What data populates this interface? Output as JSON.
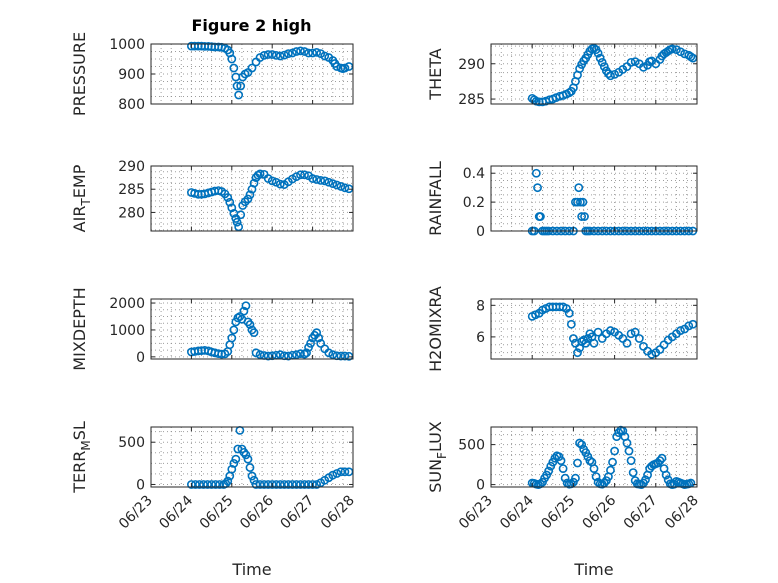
{
  "figure": {
    "title": "Figure 2 high",
    "marker_color": "#0072BD"
  },
  "chart_data": [
    {
      "id": "pressure",
      "type": "scatter",
      "title": "Figure 2 high",
      "ylabel": "PRESSURE",
      "ylabel_sub": "",
      "xlabel": "",
      "xlim": [
        0,
        5
      ],
      "ylim": [
        800,
        1000
      ],
      "yticks": [
        800,
        900,
        1000
      ],
      "ytick_labels": [
        "800",
        "900",
        "1000"
      ],
      "xticks": [
        0,
        1,
        2,
        3,
        4,
        5
      ],
      "xtick_labels": [],
      "grid": true,
      "minor_grid": true,
      "x": [
        1.0,
        1.08,
        1.17,
        1.25,
        1.33,
        1.42,
        1.5,
        1.58,
        1.67,
        1.75,
        1.83,
        1.9,
        1.95,
        2.0,
        2.05,
        2.1,
        2.13,
        2.17,
        2.22,
        2.27,
        2.33,
        2.4,
        2.5,
        2.6,
        2.7,
        2.8,
        2.9,
        3.0,
        3.1,
        3.2,
        3.3,
        3.4,
        3.5,
        3.6,
        3.7,
        3.8,
        3.9,
        4.0,
        4.1,
        4.2,
        4.3,
        4.4,
        4.5,
        4.55,
        4.6,
        4.7,
        4.75,
        4.8,
        4.9
      ],
      "y": [
        993,
        993,
        993,
        993,
        992,
        992,
        991,
        990,
        990,
        989,
        986,
        980,
        970,
        950,
        920,
        890,
        860,
        830,
        860,
        890,
        900,
        905,
        920,
        940,
        955,
        962,
        965,
        965,
        962,
        960,
        963,
        968,
        970,
        975,
        977,
        975,
        970,
        970,
        972,
        968,
        960,
        955,
        945,
        935,
        925,
        920,
        918,
        920,
        925
      ]
    },
    {
      "id": "theta",
      "type": "scatter",
      "title": "",
      "ylabel": "THETA",
      "ylabel_sub": "",
      "xlabel": "",
      "xlim": [
        0,
        5
      ],
      "ylim": [
        284.3,
        292.8
      ],
      "yticks": [
        285,
        290
      ],
      "ytick_labels": [
        "285",
        "290"
      ],
      "xticks": [
        0,
        1,
        2,
        3,
        4,
        5
      ],
      "xtick_labels": [],
      "grid": true,
      "minor_grid": true,
      "x": [
        1.0,
        1.05,
        1.1,
        1.17,
        1.25,
        1.33,
        1.42,
        1.5,
        1.58,
        1.67,
        1.75,
        1.83,
        1.9,
        1.95,
        2.0,
        2.05,
        2.1,
        2.15,
        2.2,
        2.25,
        2.3,
        2.35,
        2.4,
        2.45,
        2.5,
        2.55,
        2.6,
        2.65,
        2.7,
        2.75,
        2.8,
        2.85,
        2.9,
        3.0,
        3.1,
        3.2,
        3.3,
        3.4,
        3.5,
        3.6,
        3.7,
        3.8,
        3.85,
        3.9,
        4.0,
        4.1,
        4.15,
        4.2,
        4.25,
        4.3,
        4.35,
        4.4,
        4.5,
        4.6,
        4.7,
        4.8,
        4.85,
        4.9
      ],
      "y": [
        285.1,
        284.9,
        284.7,
        284.6,
        284.6,
        284.7,
        284.9,
        285.0,
        285.2,
        285.4,
        285.5,
        285.7,
        285.9,
        286.1,
        286.6,
        287.5,
        288.4,
        289.3,
        289.9,
        290.4,
        290.8,
        291.3,
        291.8,
        292.1,
        292.2,
        292.0,
        291.5,
        290.8,
        290.2,
        289.6,
        289.0,
        288.6,
        288.3,
        288.5,
        288.8,
        289.2,
        289.6,
        290.2,
        290.3,
        290.0,
        289.5,
        289.8,
        290.3,
        290.4,
        290.0,
        290.6,
        291.1,
        291.4,
        291.6,
        291.8,
        292.0,
        292.1,
        292.0,
        291.7,
        291.4,
        291.2,
        291.0,
        290.8
      ]
    },
    {
      "id": "air_temp",
      "type": "scatter",
      "title": "",
      "ylabel": "AIR",
      "ylabel_sub": "T",
      "ylabel_post": "EMP",
      "xlabel": "",
      "xlim": [
        0,
        5
      ],
      "ylim": [
        276,
        290
      ],
      "yticks": [
        280,
        285,
        290
      ],
      "ytick_labels": [
        "280",
        "285",
        "290"
      ],
      "xticks": [
        0,
        1,
        2,
        3,
        4,
        5
      ],
      "xtick_labels": [],
      "grid": true,
      "minor_grid": true,
      "x": [
        1.0,
        1.08,
        1.17,
        1.25,
        1.33,
        1.42,
        1.5,
        1.58,
        1.67,
        1.75,
        1.83,
        1.9,
        1.95,
        2.0,
        2.05,
        2.1,
        2.13,
        2.17,
        2.22,
        2.27,
        2.33,
        2.4,
        2.45,
        2.5,
        2.55,
        2.6,
        2.65,
        2.7,
        2.8,
        2.9,
        3.0,
        3.1,
        3.2,
        3.3,
        3.4,
        3.5,
        3.6,
        3.7,
        3.8,
        3.9,
        4.0,
        4.1,
        4.2,
        4.3,
        4.4,
        4.5,
        4.6,
        4.7,
        4.8,
        4.9
      ],
      "y": [
        284.3,
        284.1,
        283.9,
        283.9,
        284.0,
        284.2,
        284.4,
        284.6,
        284.7,
        284.5,
        284.0,
        283.2,
        282.2,
        281.0,
        279.8,
        278.7,
        277.9,
        276.9,
        279.5,
        281.5,
        282.3,
        282.9,
        283.8,
        285.0,
        286.3,
        287.5,
        288.0,
        288.3,
        288.2,
        287.3,
        286.8,
        286.5,
        286.1,
        286.0,
        286.6,
        287.2,
        287.7,
        288.1,
        288.1,
        287.9,
        287.3,
        287.1,
        286.9,
        286.8,
        286.5,
        286.2,
        285.9,
        285.6,
        285.3,
        285.1
      ]
    },
    {
      "id": "rainfall",
      "type": "scatter",
      "title": "",
      "ylabel": "RAINFALL",
      "ylabel_sub": "",
      "xlabel": "",
      "xlim": [
        0,
        5
      ],
      "ylim": [
        0,
        0.45
      ],
      "yticks": [
        0,
        0.2,
        0.4
      ],
      "ytick_labels": [
        "0",
        "0.2",
        "0.4"
      ],
      "xticks": [
        0,
        1,
        2,
        3,
        4,
        5
      ],
      "xtick_labels": [],
      "grid": true,
      "minor_grid": true,
      "x": [
        1.0,
        1.05,
        1.1,
        1.13,
        1.17,
        1.2,
        1.25,
        1.3,
        1.35,
        1.4,
        1.5,
        1.6,
        1.7,
        1.8,
        1.9,
        2.0,
        2.05,
        2.1,
        2.13,
        2.17,
        2.2,
        2.23,
        2.27,
        2.3,
        2.35,
        2.4,
        2.5,
        2.6,
        2.7,
        2.8,
        2.9,
        3.0,
        3.1,
        3.2,
        3.3,
        3.4,
        3.5,
        3.6,
        3.7,
        3.8,
        3.9,
        4.0,
        4.1,
        4.2,
        4.3,
        4.4,
        4.5,
        4.6,
        4.7,
        4.8,
        4.9
      ],
      "y": [
        0,
        0,
        0.4,
        0.3,
        0.1,
        0.1,
        0,
        0,
        0,
        0,
        0,
        0,
        0,
        0,
        0,
        0,
        0.2,
        0.2,
        0.3,
        0.2,
        0.1,
        0.2,
        0.1,
        0,
        0,
        0,
        0,
        0,
        0,
        0,
        0,
        0,
        0,
        0,
        0,
        0,
        0,
        0,
        0,
        0,
        0,
        0,
        0,
        0,
        0,
        0,
        0,
        0,
        0,
        0,
        0
      ]
    },
    {
      "id": "mixdepth",
      "type": "scatter",
      "title": "",
      "ylabel": "MIXDEPTH",
      "ylabel_sub": "",
      "xlabel": "",
      "xlim": [
        0,
        5
      ],
      "ylim": [
        -80,
        2150
      ],
      "yticks": [
        0,
        1000,
        2000
      ],
      "ytick_labels": [
        "0",
        "1000",
        "2000"
      ],
      "xticks": [
        0,
        1,
        2,
        3,
        4,
        5
      ],
      "xtick_labels": [],
      "grid": true,
      "minor_grid": true,
      "x": [
        1.0,
        1.08,
        1.17,
        1.25,
        1.33,
        1.42,
        1.5,
        1.58,
        1.67,
        1.75,
        1.83,
        1.9,
        1.95,
        2.0,
        2.05,
        2.1,
        2.15,
        2.2,
        2.25,
        2.3,
        2.35,
        2.4,
        2.45,
        2.5,
        2.55,
        2.6,
        2.7,
        2.8,
        2.9,
        3.0,
        3.1,
        3.2,
        3.3,
        3.4,
        3.5,
        3.6,
        3.7,
        3.8,
        3.85,
        3.9,
        3.95,
        4.0,
        4.05,
        4.1,
        4.15,
        4.2,
        4.3,
        4.4,
        4.5,
        4.6,
        4.7,
        4.8,
        4.9
      ],
      "y": [
        180,
        200,
        220,
        230,
        240,
        220,
        180,
        150,
        120,
        100,
        110,
        200,
        450,
        700,
        1000,
        1300,
        1450,
        1500,
        1400,
        1700,
        1900,
        1300,
        1200,
        1000,
        900,
        150,
        80,
        50,
        30,
        40,
        60,
        80,
        40,
        30,
        60,
        80,
        120,
        100,
        150,
        350,
        500,
        700,
        800,
        900,
        700,
        500,
        300,
        150,
        80,
        40,
        30,
        30,
        20
      ]
    },
    {
      "id": "h2omixra",
      "type": "scatter",
      "title": "",
      "ylabel": "H2OMIXRA",
      "ylabel_sub": "",
      "xlabel": "",
      "xlim": [
        0,
        5
      ],
      "ylim": [
        4.6,
        8.4
      ],
      "yticks": [
        6,
        8
      ],
      "ytick_labels": [
        "6",
        "8"
      ],
      "xticks": [
        0,
        1,
        2,
        3,
        4,
        5
      ],
      "xtick_labels": [],
      "grid": true,
      "minor_grid": true,
      "x": [
        1.0,
        1.08,
        1.17,
        1.25,
        1.33,
        1.42,
        1.5,
        1.58,
        1.67,
        1.75,
        1.83,
        1.9,
        1.95,
        2.0,
        2.05,
        2.1,
        2.15,
        2.2,
        2.25,
        2.3,
        2.35,
        2.4,
        2.45,
        2.5,
        2.6,
        2.7,
        2.8,
        2.9,
        3.0,
        3.1,
        3.2,
        3.3,
        3.4,
        3.5,
        3.6,
        3.7,
        3.8,
        3.9,
        4.0,
        4.1,
        4.2,
        4.3,
        4.4,
        4.5,
        4.6,
        4.7,
        4.8,
        4.9
      ],
      "y": [
        7.3,
        7.4,
        7.5,
        7.7,
        7.8,
        7.9,
        7.9,
        7.9,
        7.9,
        7.9,
        7.8,
        7.5,
        6.8,
        5.9,
        5.6,
        5.0,
        5.3,
        5.7,
        5.8,
        5.6,
        5.9,
        6.2,
        6.0,
        5.6,
        6.3,
        5.9,
        6.2,
        6.4,
        6.3,
        6.1,
        5.9,
        5.6,
        6.2,
        6.3,
        5.9,
        5.4,
        5.1,
        4.9,
        5.0,
        5.2,
        5.5,
        5.8,
        6.0,
        6.2,
        6.4,
        6.5,
        6.7,
        6.8
      ]
    },
    {
      "id": "terr_msl",
      "type": "scatter",
      "title": "",
      "ylabel": "TERR",
      "ylabel_sub": "M",
      "ylabel_post": "SL",
      "xlabel": "Time",
      "xlim": [
        0,
        5
      ],
      "ylim": [
        -30,
        680
      ],
      "yticks": [
        0,
        500
      ],
      "ytick_labels": [
        "0",
        "500"
      ],
      "xticks": [
        0,
        1,
        2,
        3,
        4,
        5
      ],
      "xtick_labels": [
        "06/23",
        "06/24",
        "06/25",
        "06/26",
        "06/27",
        "06/28"
      ],
      "grid": true,
      "minor_grid": true,
      "x": [
        1.0,
        1.1,
        1.2,
        1.3,
        1.4,
        1.5,
        1.6,
        1.7,
        1.8,
        1.85,
        1.9,
        1.95,
        2.0,
        2.05,
        2.1,
        2.15,
        2.2,
        2.25,
        2.3,
        2.35,
        2.4,
        2.45,
        2.5,
        2.55,
        2.6,
        2.7,
        2.8,
        2.9,
        3.0,
        3.1,
        3.2,
        3.3,
        3.4,
        3.5,
        3.6,
        3.7,
        3.8,
        3.9,
        4.0,
        4.1,
        4.2,
        4.3,
        4.4,
        4.5,
        4.6,
        4.7,
        4.8,
        4.9
      ],
      "y": [
        0,
        0,
        0,
        0,
        0,
        0,
        0,
        0,
        0,
        10,
        40,
        100,
        180,
        250,
        300,
        420,
        640,
        420,
        380,
        350,
        300,
        200,
        100,
        50,
        0,
        0,
        0,
        0,
        0,
        0,
        0,
        0,
        0,
        0,
        0,
        0,
        0,
        0,
        0,
        0,
        20,
        50,
        80,
        110,
        130,
        150,
        150,
        150
      ]
    },
    {
      "id": "sun_flux",
      "type": "scatter",
      "title": "",
      "ylabel": "SUN",
      "ylabel_sub": "F",
      "ylabel_post": "LUX",
      "xlabel": "Time",
      "xlim": [
        0,
        5
      ],
      "ylim": [
        -30,
        720
      ],
      "yticks": [
        0,
        500
      ],
      "ytick_labels": [
        "0",
        "500"
      ],
      "xticks": [
        0,
        1,
        2,
        3,
        4,
        5
      ],
      "xtick_labels": [
        "06/23",
        "06/24",
        "06/25",
        "06/26",
        "06/27",
        "06/28"
      ],
      "grid": true,
      "minor_grid": true,
      "x": [
        1.0,
        1.05,
        1.1,
        1.15,
        1.2,
        1.25,
        1.3,
        1.35,
        1.4,
        1.45,
        1.5,
        1.55,
        1.6,
        1.65,
        1.7,
        1.75,
        1.8,
        1.85,
        1.9,
        1.95,
        2.0,
        2.05,
        2.1,
        2.15,
        2.2,
        2.25,
        2.3,
        2.35,
        2.4,
        2.45,
        2.5,
        2.55,
        2.6,
        2.65,
        2.7,
        2.75,
        2.8,
        2.85,
        2.9,
        2.95,
        3.0,
        3.05,
        3.1,
        3.15,
        3.2,
        3.25,
        3.3,
        3.35,
        3.4,
        3.45,
        3.5,
        3.55,
        3.6,
        3.65,
        3.7,
        3.75,
        3.8,
        3.85,
        3.9,
        3.95,
        4.0,
        4.05,
        4.1,
        4.15,
        4.2,
        4.25,
        4.3,
        4.35,
        4.4,
        4.45,
        4.5,
        4.55,
        4.6,
        4.65,
        4.7,
        4.75,
        4.8,
        4.85
      ],
      "y": [
        20,
        15,
        5,
        0,
        10,
        30,
        80,
        120,
        170,
        230,
        280,
        330,
        360,
        350,
        300,
        200,
        80,
        20,
        5,
        10,
        30,
        80,
        270,
        520,
        500,
        440,
        400,
        350,
        300,
        280,
        200,
        100,
        30,
        10,
        5,
        20,
        50,
        100,
        180,
        280,
        420,
        600,
        650,
        680,
        670,
        600,
        520,
        420,
        300,
        150,
        50,
        10,
        5,
        0,
        20,
        60,
        120,
        200,
        230,
        250,
        260,
        270,
        300,
        330,
        200,
        120,
        60,
        10,
        0,
        5,
        40,
        30,
        20,
        10,
        0,
        5,
        10,
        20
      ]
    }
  ]
}
